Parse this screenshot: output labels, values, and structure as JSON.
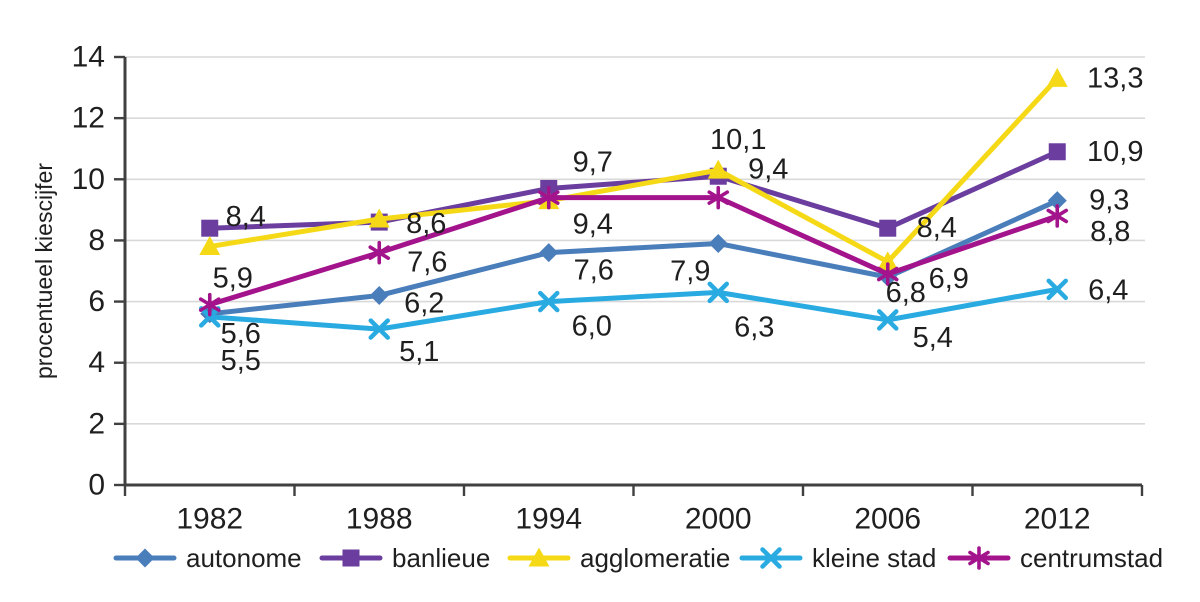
{
  "chart_data": {
    "type": "line",
    "title": "",
    "xlabel": "",
    "ylabel": "procentueel kiescijfer",
    "ylim": [
      0,
      14
    ],
    "yticks": [
      0,
      2,
      4,
      6,
      8,
      10,
      12,
      14
    ],
    "grid": "horizontal",
    "legend_position": "bottom",
    "decimal_separator": ",",
    "categories": [
      "1982",
      "1988",
      "1994",
      "2000",
      "2006",
      "2012"
    ],
    "series": [
      {
        "name": "autonome",
        "slug": "autonome",
        "color": "#4A7EBB",
        "marker": "diamond",
        "values": [
          5.6,
          6.2,
          7.6,
          7.9,
          6.8,
          9.3
        ],
        "labels": [
          "5,6",
          "6,2",
          "7,6",
          "7,9",
          "6,8",
          "9,3"
        ],
        "label_offsets": [
          [
            31,
            20
          ],
          [
            45,
            8
          ],
          [
            45,
            18
          ],
          [
            -28,
            28
          ],
          [
            18,
            16
          ],
          [
            52,
            0
          ]
        ]
      },
      {
        "name": "banlieue",
        "slug": "banlieue",
        "color": "#6A3D9E",
        "marker": "square",
        "values": [
          8.4,
          8.6,
          9.7,
          10.1,
          8.4,
          10.9
        ],
        "labels": [
          "8,4",
          "8,6",
          "9,7",
          "10,1",
          "8,4",
          "10,9"
        ],
        "label_offsets": [
          [
            36,
            -11
          ],
          [
            47,
            2
          ],
          [
            44,
            -26
          ],
          [
            20,
            -36
          ],
          [
            49,
            0
          ],
          [
            58,
            0
          ]
        ]
      },
      {
        "name": "agglomeratie",
        "slug": "agglomeratie",
        "color": "#F5D916",
        "marker": "triangle",
        "values": [
          7.8,
          8.7,
          9.3,
          10.3,
          7.3,
          13.3
        ],
        "labels": [
          null,
          null,
          null,
          null,
          null,
          "13,3"
        ],
        "label_offsets": [
          null,
          null,
          null,
          null,
          null,
          [
            58,
            0
          ]
        ]
      },
      {
        "name": "kleine stad",
        "slug": "kleine-stad",
        "color": "#29ABE2",
        "marker": "x",
        "values": [
          5.5,
          5.1,
          6.0,
          6.3,
          5.4,
          6.4
        ],
        "labels": [
          "5,5",
          "5,1",
          "6,0",
          "6,3",
          "5,4",
          "6,4"
        ],
        "label_offsets": [
          [
            31,
            44
          ],
          [
            40,
            23
          ],
          [
            43,
            25
          ],
          [
            36,
            35
          ],
          [
            45,
            18
          ],
          [
            51,
            1
          ]
        ]
      },
      {
        "name": "centrumstad",
        "slug": "centrumstad",
        "color": "#A3148C",
        "marker": "asterisk",
        "values": [
          5.9,
          7.6,
          9.4,
          9.4,
          6.9,
          8.8
        ],
        "labels": [
          "5,9",
          "7,6",
          "9,4",
          "9,4",
          "6,9",
          "8,8"
        ],
        "label_offsets": [
          [
            23,
            -26
          ],
          [
            48,
            10
          ],
          [
            44,
            27
          ],
          [
            50,
            -28
          ],
          [
            61,
            5
          ],
          [
            53,
            16
          ]
        ]
      }
    ],
    "colors": {
      "axis": "#404040",
      "grid": "#D9D9D9",
      "text": "#1F1F1F"
    }
  }
}
